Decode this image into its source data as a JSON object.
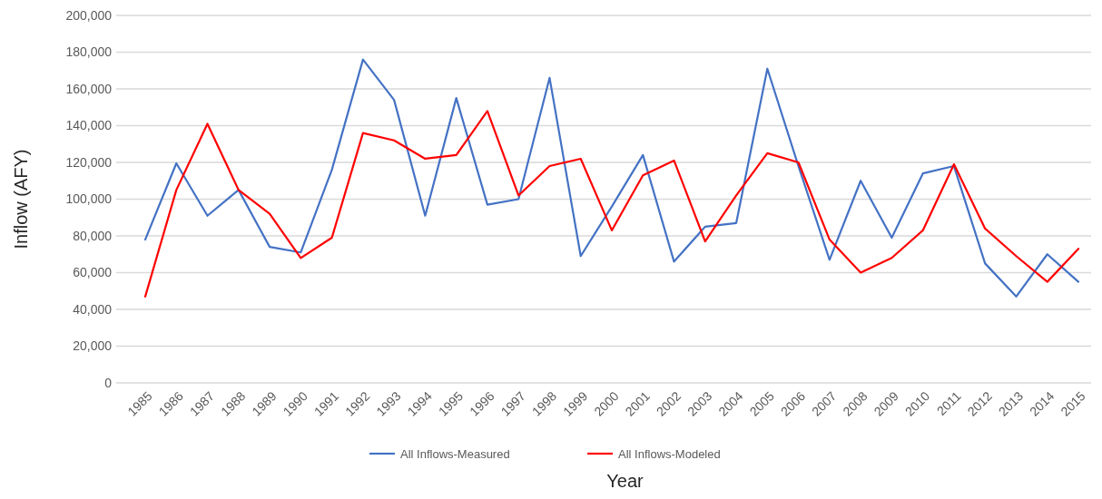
{
  "chart_data": {
    "type": "line",
    "xlabel": "Year",
    "ylabel": "Inflow (AFY)",
    "categories": [
      "1985",
      "1986",
      "1987",
      "1988",
      "1989",
      "1990",
      "1991",
      "1992",
      "1993",
      "1994",
      "1995",
      "1996",
      "1997",
      "1998",
      "1999",
      "2000",
      "2001",
      "2002",
      "2003",
      "2004",
      "2005",
      "2006",
      "2007",
      "2008",
      "2009",
      "2010",
      "2011",
      "2012",
      "2013",
      "2014",
      "2015"
    ],
    "series": [
      {
        "name": "All Inflows-Measured",
        "color": "#4472c4",
        "values": [
          78000,
          119500,
          91000,
          105000,
          74000,
          71000,
          116000,
          176000,
          154000,
          91000,
          155000,
          97000,
          100000,
          166000,
          69000,
          96000,
          124000,
          66000,
          85000,
          87000,
          171000,
          118000,
          67000,
          110000,
          79000,
          114000,
          118000,
          65000,
          47000,
          70000,
          55000
        ]
      },
      {
        "name": "All Inflows-Modeled",
        "color": "#ff0000",
        "values": [
          47000,
          105000,
          141000,
          105000,
          92000,
          68000,
          79000,
          136000,
          132000,
          122000,
          124000,
          148000,
          102000,
          118000,
          122000,
          83000,
          113000,
          121000,
          77000,
          102000,
          125000,
          120000,
          78000,
          60000,
          68000,
          83000,
          119000,
          84000,
          69000,
          55000,
          73000
        ]
      }
    ],
    "ylim": [
      0,
      200000
    ],
    "yticks": [
      {
        "value": 0,
        "label": "0"
      },
      {
        "value": 20000,
        "label": "20,000"
      },
      {
        "value": 40000,
        "label": "40,000"
      },
      {
        "value": 60000,
        "label": "60,000"
      },
      {
        "value": 80000,
        "label": "80,000"
      },
      {
        "value": 100000,
        "label": "100,000"
      },
      {
        "value": 120000,
        "label": "120,000"
      },
      {
        "value": 140000,
        "label": "140,000"
      },
      {
        "value": 160000,
        "label": "160,000"
      },
      {
        "value": 180000,
        "label": "180,000"
      },
      {
        "value": 200000,
        "label": "200,000"
      }
    ],
    "grid": "y",
    "legend": "bottom",
    "marker": "none",
    "line_style": "solid"
  }
}
